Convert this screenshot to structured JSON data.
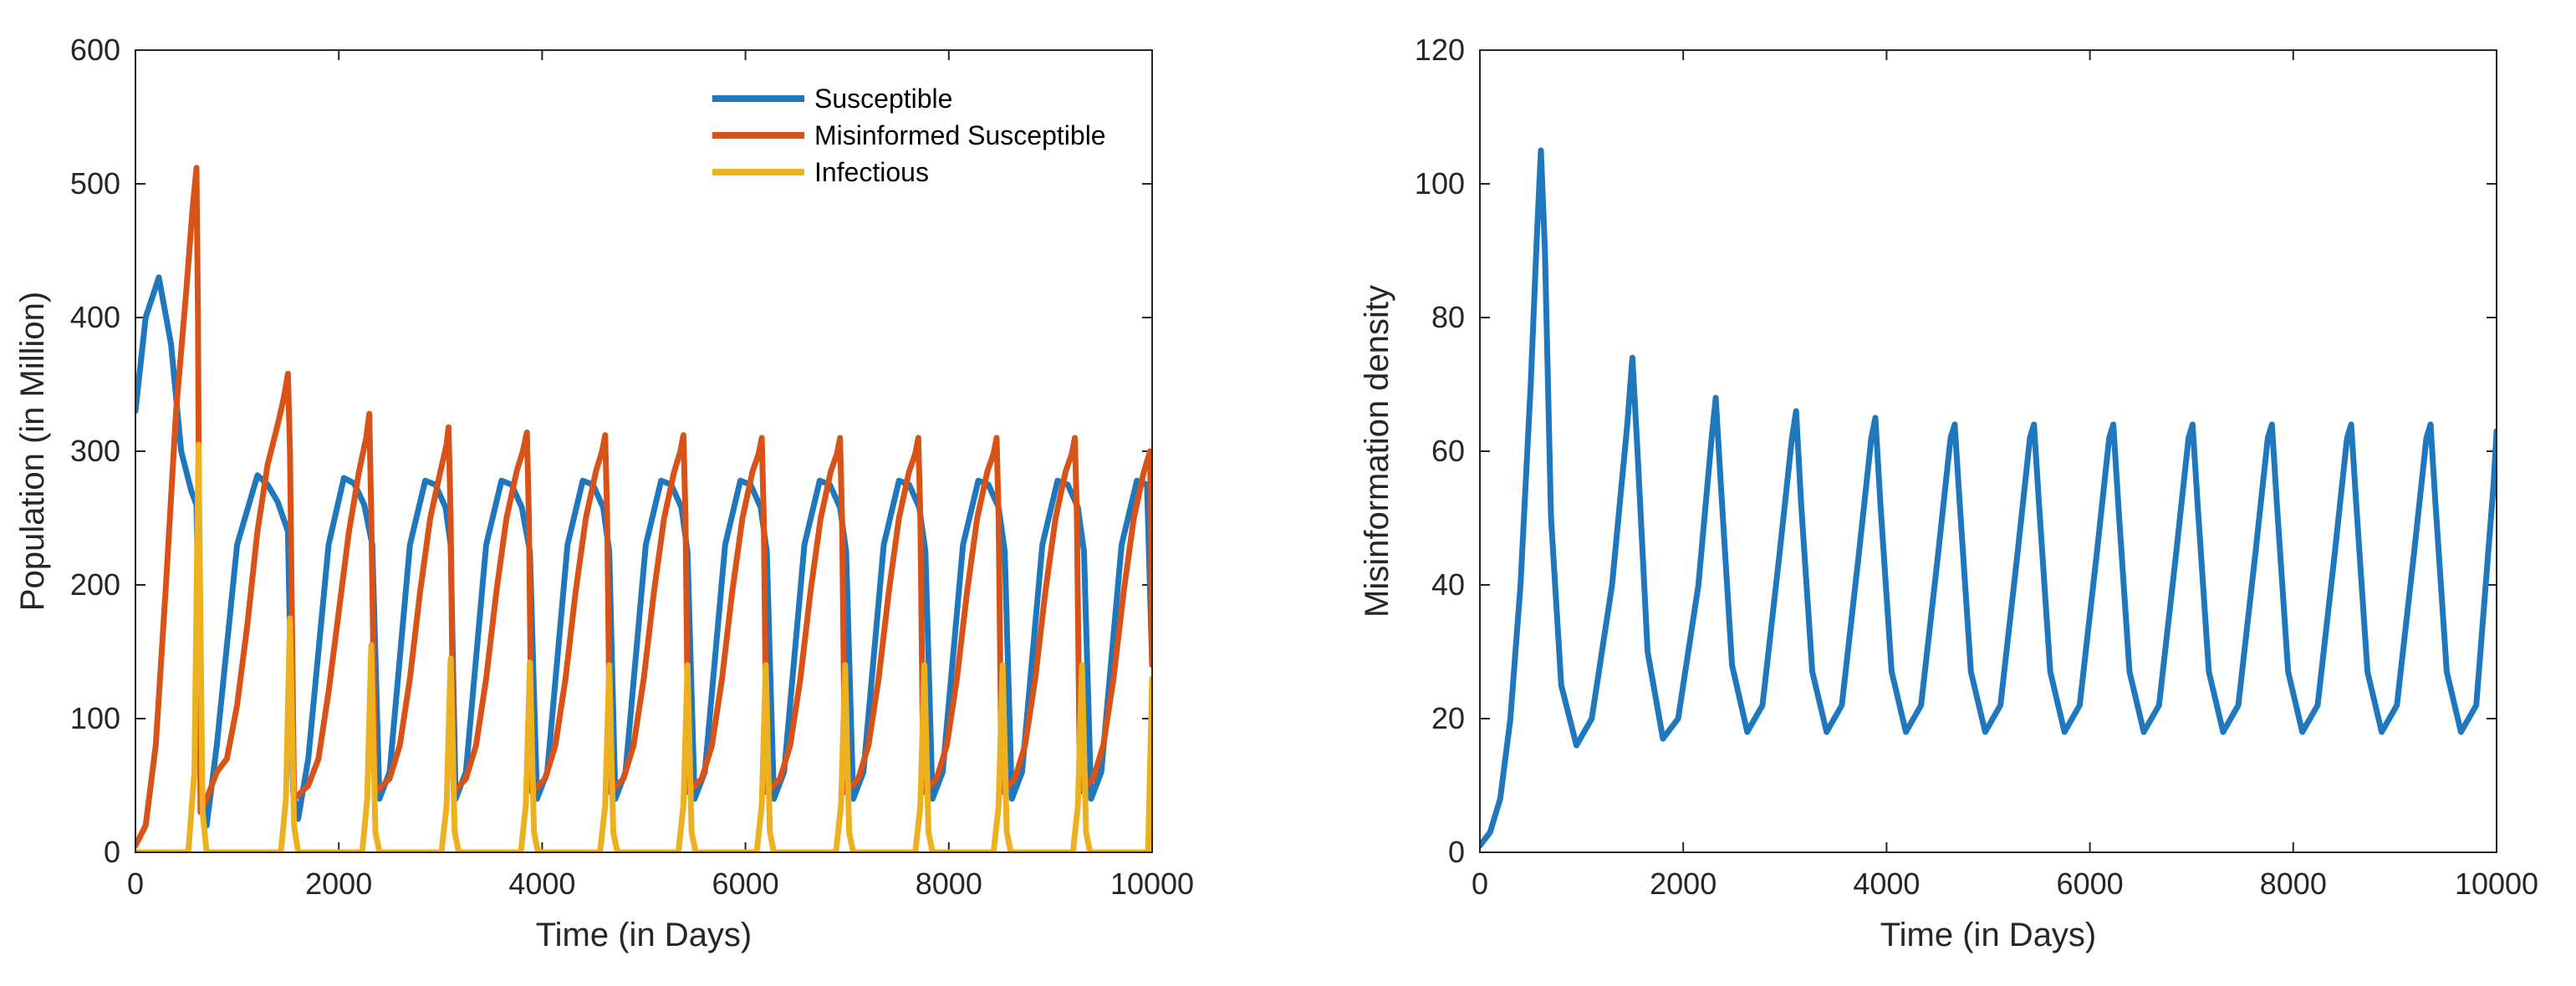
{
  "chart_data": [
    {
      "type": "line",
      "xlabel": "Time (in Days)",
      "ylabel": "Population (in Million)",
      "xlim": [
        0,
        10000
      ],
      "ylim": [
        0,
        600
      ],
      "xticks": [
        0,
        2000,
        4000,
        6000,
        8000,
        10000
      ],
      "yticks": [
        0,
        100,
        200,
        300,
        400,
        500,
        600
      ],
      "legend_position": "top-right",
      "series": [
        {
          "name": "Susceptible",
          "color": "#1f77bd",
          "x": [
            0,
            100,
            230,
            350,
            450,
            550,
            600,
            650,
            700,
            800,
            1000,
            1200,
            1300,
            1400,
            1500,
            1550,
            1600,
            1700,
            1900,
            2050,
            2150,
            2250,
            2330,
            2400,
            2500,
            2700,
            2850,
            2950,
            3050,
            3100,
            3150,
            3250,
            3450,
            3600,
            3700,
            3800,
            3880,
            3950,
            4050,
            4250,
            4400,
            4500,
            4600,
            4660,
            4720,
            4820,
            5020,
            5170,
            5270,
            5370,
            5430,
            5500,
            5600,
            5800,
            5950,
            6050,
            6150,
            6210,
            6280,
            6380,
            6580,
            6730,
            6830,
            6930,
            6990,
            7060,
            7160,
            7360,
            7510,
            7610,
            7710,
            7770,
            7840,
            7940,
            8140,
            8290,
            8390,
            8490,
            8550,
            8620,
            8720,
            8920,
            9070,
            9170,
            9270,
            9330,
            9400,
            9500,
            9700,
            9850,
            9950,
            10000
          ],
          "values": [
            330,
            400,
            430,
            380,
            300,
            270,
            260,
            50,
            20,
            80,
            230,
            282,
            275,
            262,
            240,
            45,
            25,
            70,
            230,
            280,
            276,
            260,
            230,
            40,
            60,
            230,
            278,
            275,
            258,
            230,
            40,
            60,
            230,
            278,
            275,
            258,
            225,
            40,
            60,
            230,
            278,
            275,
            258,
            225,
            40,
            60,
            230,
            278,
            275,
            258,
            225,
            40,
            60,
            230,
            278,
            275,
            258,
            225,
            40,
            60,
            230,
            278,
            275,
            258,
            225,
            40,
            60,
            230,
            278,
            275,
            258,
            225,
            40,
            60,
            230,
            278,
            275,
            258,
            225,
            40,
            60,
            230,
            278,
            275,
            258,
            225,
            40,
            60,
            230,
            278,
            275,
            140
          ]
        },
        {
          "name": "Misinformed Susceptible",
          "color": "#d95319",
          "x": [
            0,
            100,
            200,
            300,
            400,
            500,
            560,
            600,
            615,
            640,
            700,
            800,
            900,
            1000,
            1100,
            1200,
            1300,
            1400,
            1460,
            1500,
            1520,
            1560,
            1700,
            1800,
            1900,
            2000,
            2100,
            2200,
            2270,
            2300,
            2320,
            2360,
            2500,
            2600,
            2700,
            2800,
            2900,
            3000,
            3060,
            3080,
            3100,
            3130,
            3250,
            3350,
            3450,
            3550,
            3650,
            3750,
            3810,
            3850,
            3870,
            3900,
            4030,
            4130,
            4230,
            4330,
            4430,
            4530,
            4590,
            4620,
            4640,
            4670,
            4800,
            4900,
            5000,
            5100,
            5200,
            5300,
            5360,
            5390,
            5410,
            5440,
            5570,
            5670,
            5770,
            5870,
            5970,
            6070,
            6130,
            6160,
            6180,
            6210,
            6340,
            6440,
            6540,
            6640,
            6740,
            6840,
            6900,
            6930,
            6950,
            6980,
            7110,
            7210,
            7310,
            7410,
            7510,
            7610,
            7670,
            7700,
            7720,
            7750,
            7880,
            7980,
            8080,
            8180,
            8280,
            8380,
            8440,
            8470,
            8490,
            8520,
            8650,
            8750,
            8850,
            8950,
            9050,
            9150,
            9210,
            9240,
            9260,
            9290,
            9420,
            9520,
            9620,
            9720,
            9820,
            9920,
            9980,
            10000
          ],
          "values": [
            5,
            20,
            80,
            200,
            330,
            420,
            480,
            512,
            400,
            30,
            40,
            60,
            70,
            110,
            170,
            240,
            290,
            320,
            340,
            358,
            300,
            40,
            50,
            70,
            120,
            180,
            240,
            285,
            310,
            328,
            250,
            45,
            55,
            80,
            130,
            195,
            250,
            285,
            305,
            318,
            250,
            45,
            55,
            80,
            130,
            195,
            250,
            285,
            300,
            314,
            250,
            45,
            55,
            80,
            130,
            195,
            250,
            285,
            300,
            312,
            250,
            45,
            55,
            80,
            130,
            195,
            250,
            285,
            300,
            312,
            250,
            45,
            55,
            80,
            130,
            195,
            250,
            285,
            298,
            310,
            250,
            45,
            55,
            80,
            130,
            195,
            250,
            285,
            298,
            310,
            250,
            45,
            55,
            80,
            130,
            195,
            250,
            285,
            298,
            310,
            250,
            45,
            55,
            80,
            130,
            195,
            250,
            285,
            298,
            310,
            250,
            45,
            55,
            80,
            130,
            195,
            250,
            285,
            298,
            310,
            250,
            45,
            55,
            80,
            130,
            195,
            250,
            285,
            300,
            140
          ]
        },
        {
          "name": "Infectious",
          "color": "#edb120",
          "x": [
            0,
            520,
            580,
            620,
            660,
            700,
            1430,
            1480,
            1520,
            1560,
            1600,
            2230,
            2280,
            2320,
            2360,
            2400,
            3010,
            3060,
            3100,
            3140,
            3180,
            3790,
            3840,
            3880,
            3920,
            3960,
            4570,
            4620,
            4660,
            4700,
            4740,
            5340,
            5390,
            5430,
            5470,
            5510,
            6110,
            6160,
            6200,
            6240,
            6280,
            6890,
            6940,
            6980,
            7020,
            7060,
            7670,
            7720,
            7760,
            7800,
            7840,
            8440,
            8490,
            8530,
            8570,
            8610,
            9220,
            9270,
            9310,
            9350,
            9390,
            9960,
            10000
          ],
          "values": [
            0,
            0,
            60,
            305,
            30,
            0,
            0,
            40,
            175,
            20,
            0,
            0,
            40,
            155,
            15,
            0,
            0,
            35,
            145,
            15,
            0,
            0,
            35,
            142,
            15,
            0,
            0,
            35,
            140,
            15,
            0,
            0,
            35,
            140,
            15,
            0,
            0,
            35,
            140,
            15,
            0,
            0,
            35,
            140,
            15,
            0,
            0,
            35,
            140,
            15,
            0,
            0,
            35,
            140,
            15,
            0,
            0,
            35,
            140,
            15,
            0,
            0,
            130
          ]
        }
      ]
    },
    {
      "type": "line",
      "xlabel": "Time (in Days)",
      "ylabel": "Misinformation density",
      "xlim": [
        0,
        10000
      ],
      "ylim": [
        0,
        120
      ],
      "xticks": [
        0,
        2000,
        4000,
        6000,
        8000,
        10000
      ],
      "yticks": [
        0,
        20,
        40,
        60,
        80,
        100,
        120
      ],
      "series": [
        {
          "name": "Misinformation density",
          "color": "#1f77bd",
          "x": [
            0,
            100,
            200,
            300,
            400,
            500,
            560,
            600,
            640,
            700,
            800,
            950,
            1100,
            1300,
            1450,
            1500,
            1550,
            1650,
            1800,
            1950,
            2150,
            2280,
            2320,
            2370,
            2480,
            2630,
            2780,
            2950,
            3070,
            3110,
            3160,
            3270,
            3410,
            3560,
            3730,
            3850,
            3890,
            3940,
            4050,
            4190,
            4340,
            4510,
            4630,
            4670,
            4720,
            4830,
            4970,
            5120,
            5290,
            5410,
            5450,
            5500,
            5610,
            5750,
            5900,
            6070,
            6190,
            6230,
            6280,
            6390,
            6530,
            6680,
            6850,
            6970,
            7010,
            7060,
            7170,
            7310,
            7460,
            7630,
            7750,
            7790,
            7840,
            7950,
            8090,
            8240,
            8410,
            8530,
            8570,
            8620,
            8730,
            8870,
            9020,
            9190,
            9310,
            9350,
            9400,
            9510,
            9650,
            9800,
            9970,
            10000
          ],
          "values": [
            1,
            3,
            8,
            20,
            40,
            70,
            92,
            105,
            90,
            50,
            25,
            16,
            20,
            40,
            64,
            74,
            60,
            30,
            17,
            20,
            40,
            62,
            68,
            55,
            28,
            18,
            22,
            45,
            62,
            66,
            52,
            27,
            18,
            22,
            45,
            62,
            65,
            52,
            27,
            18,
            22,
            45,
            62,
            64,
            52,
            27,
            18,
            22,
            45,
            62,
            64,
            52,
            27,
            18,
            22,
            45,
            62,
            64,
            52,
            27,
            18,
            22,
            45,
            62,
            64,
            52,
            27,
            18,
            22,
            45,
            62,
            64,
            52,
            27,
            18,
            22,
            45,
            62,
            64,
            52,
            27,
            18,
            22,
            45,
            62,
            64,
            52,
            27,
            18,
            22,
            55,
            63
          ]
        }
      ]
    }
  ]
}
